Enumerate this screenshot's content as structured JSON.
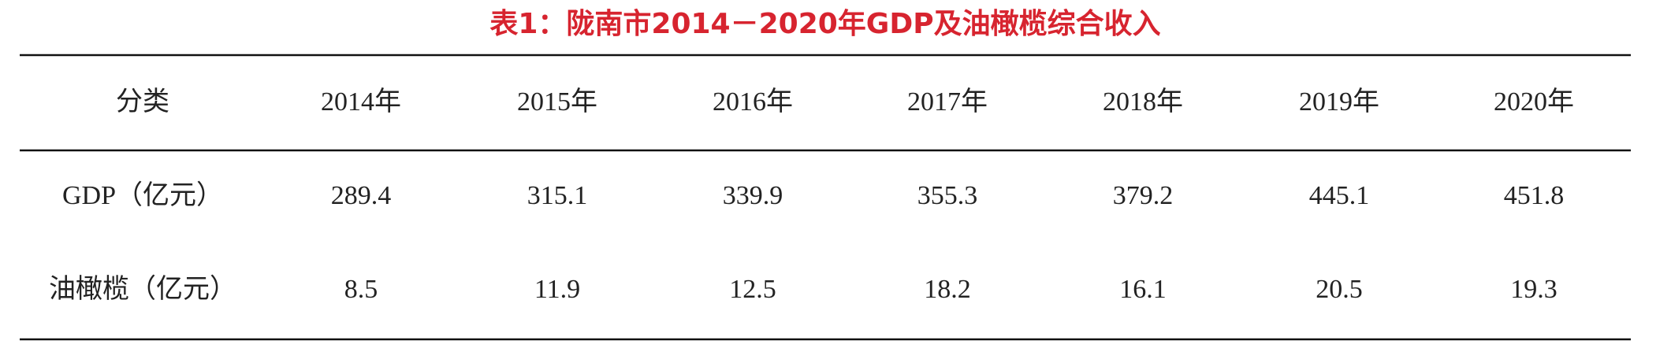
{
  "title": "表1：陇南市2014－2020年GDP及油橄榄综合收入",
  "table": {
    "header": [
      "分类",
      "2014年",
      "2015年",
      "2016年",
      "2017年",
      "2018年",
      "2019年",
      "2020年"
    ],
    "rows": [
      [
        "GDP（亿元）",
        289.4,
        315.1,
        339.9,
        355.3,
        379.2,
        445.1,
        451.8
      ],
      [
        "油橄榄（亿元）",
        8.5,
        11.9,
        12.5,
        18.2,
        16.1,
        20.5,
        19.3
      ]
    ]
  }
}
